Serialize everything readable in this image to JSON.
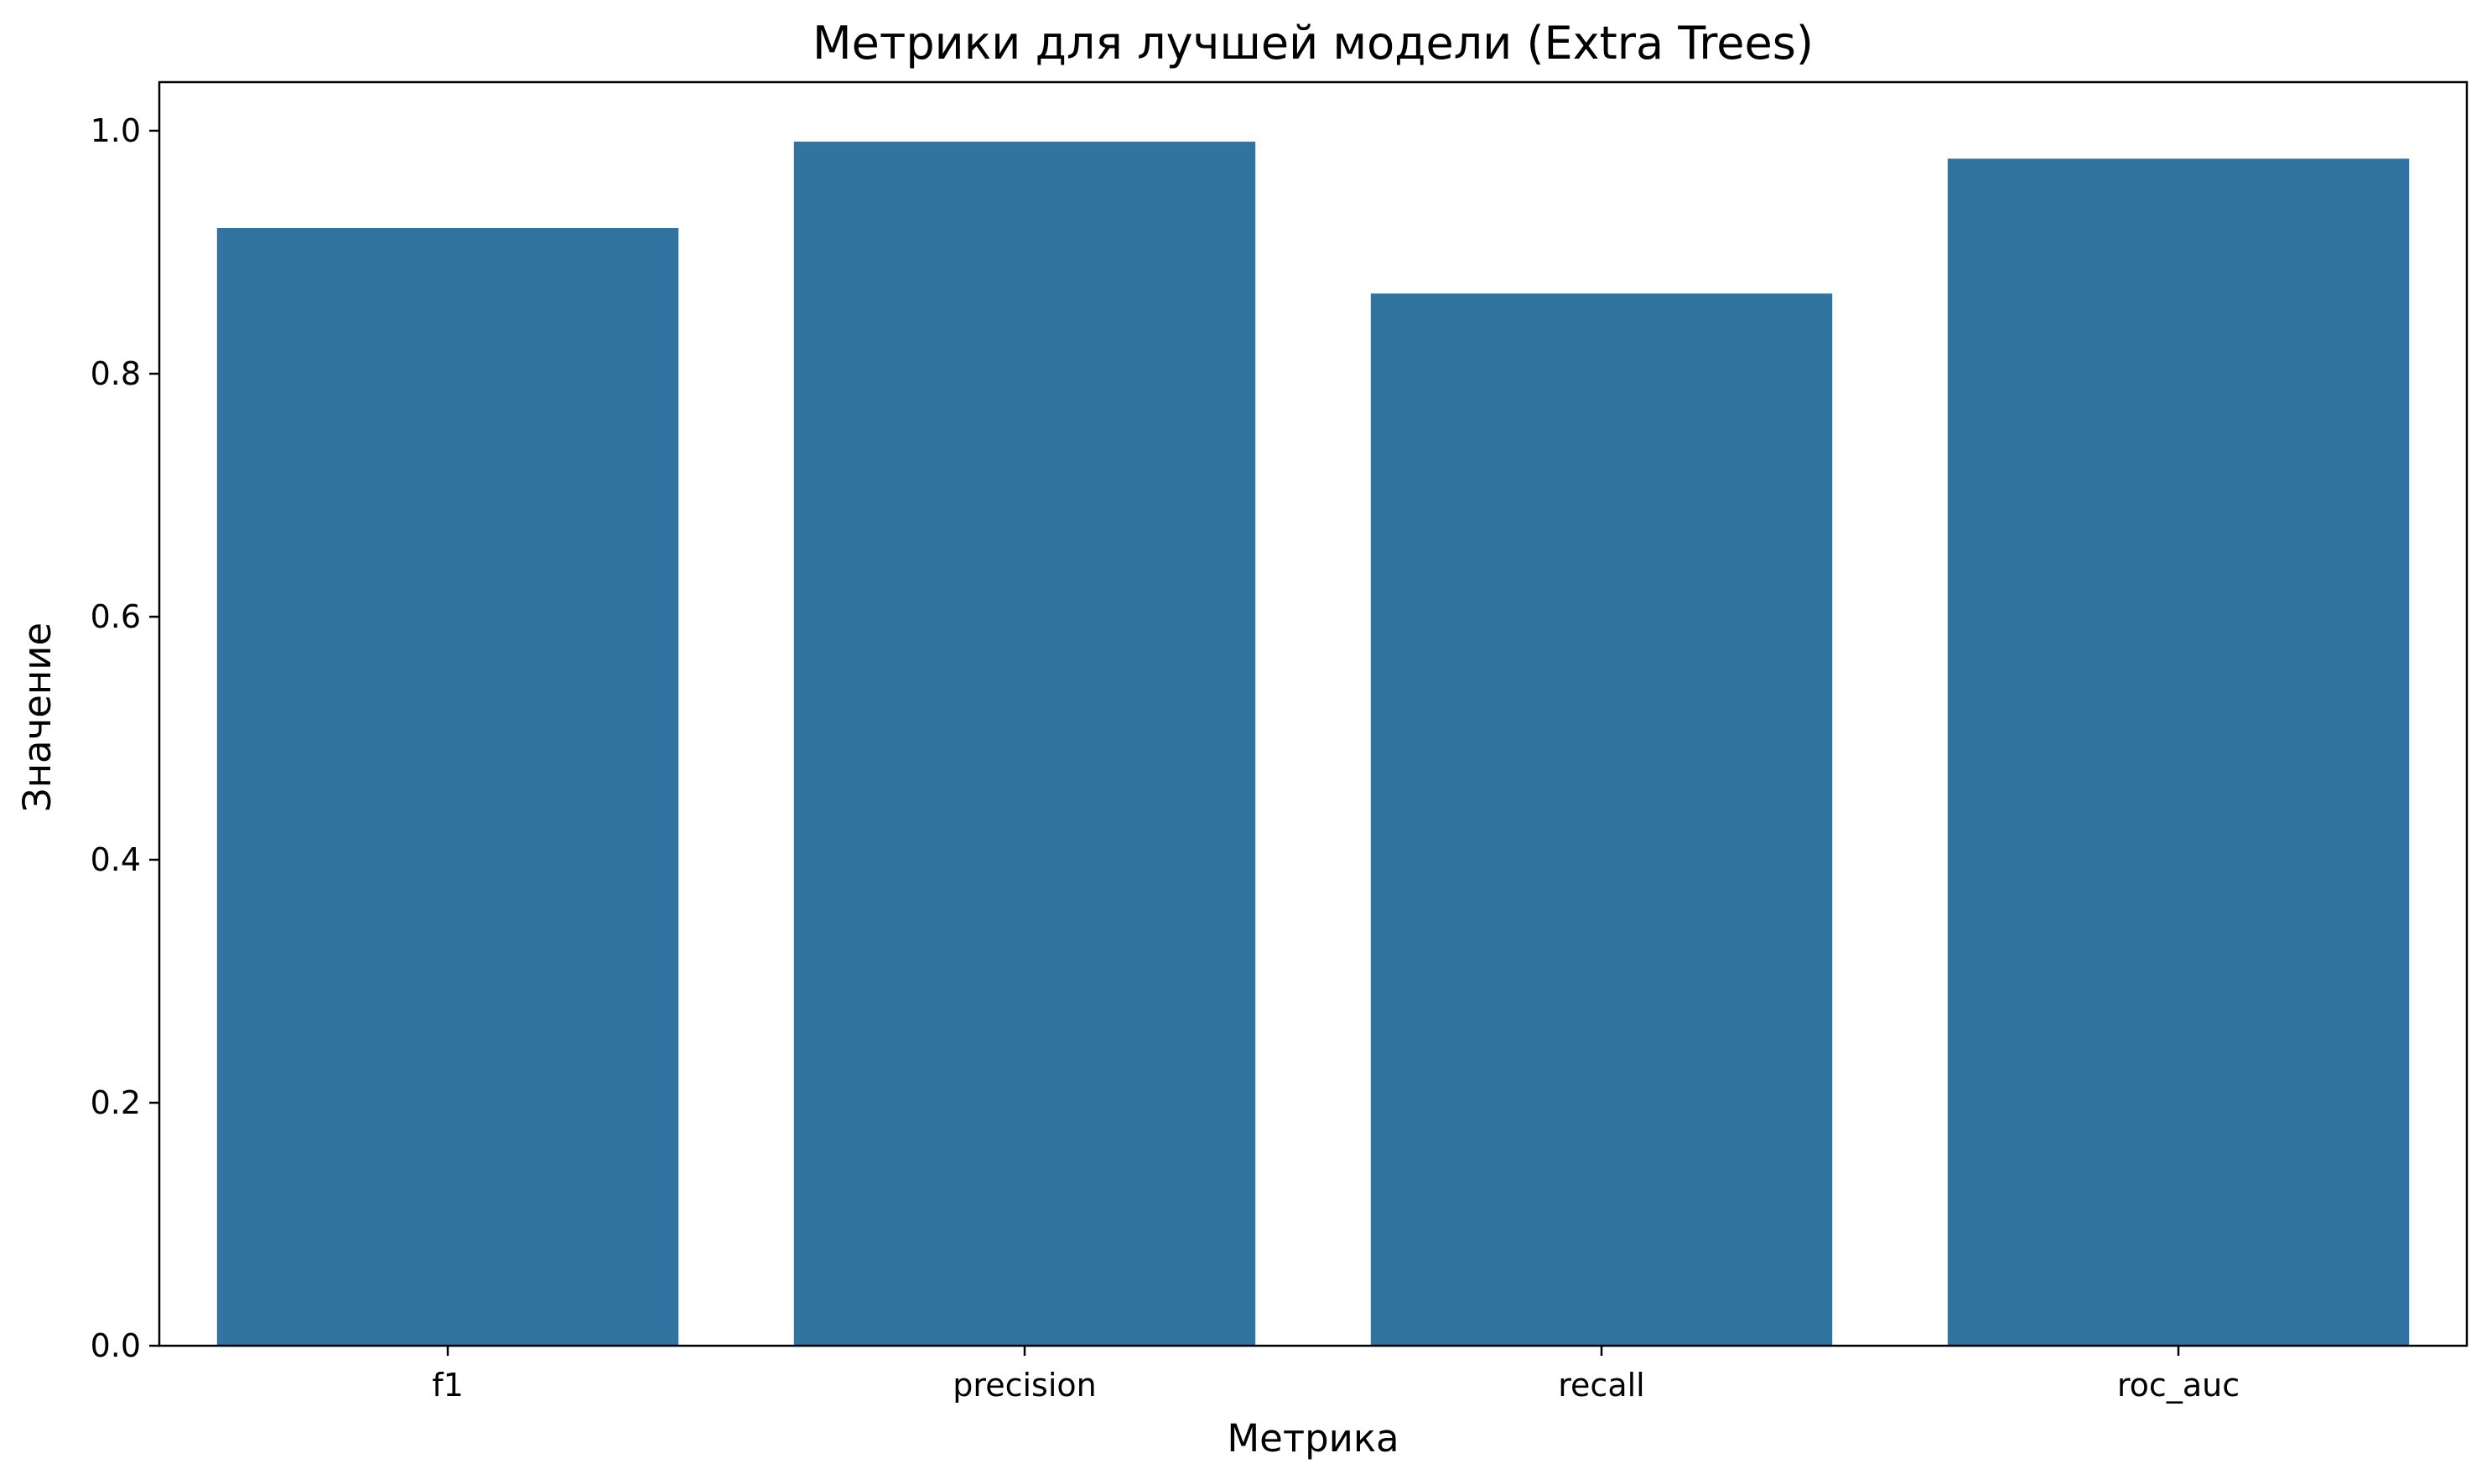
{
  "chart_data": {
    "type": "bar",
    "title": "Метрики для лучшей модели (Extra Trees)",
    "xlabel": "Метрика",
    "ylabel": "Значение",
    "categories": [
      "f1",
      "precision",
      "recall",
      "roc_auc"
    ],
    "values": [
      0.92,
      0.991,
      0.866,
      0.977
    ],
    "ylim": [
      0,
      1.04
    ],
    "yticks": [
      "0.0",
      "0.2",
      "0.4",
      "0.6",
      "0.8",
      "1.0"
    ],
    "grid": false,
    "legend": "none",
    "bar_color": "#3274a1"
  }
}
